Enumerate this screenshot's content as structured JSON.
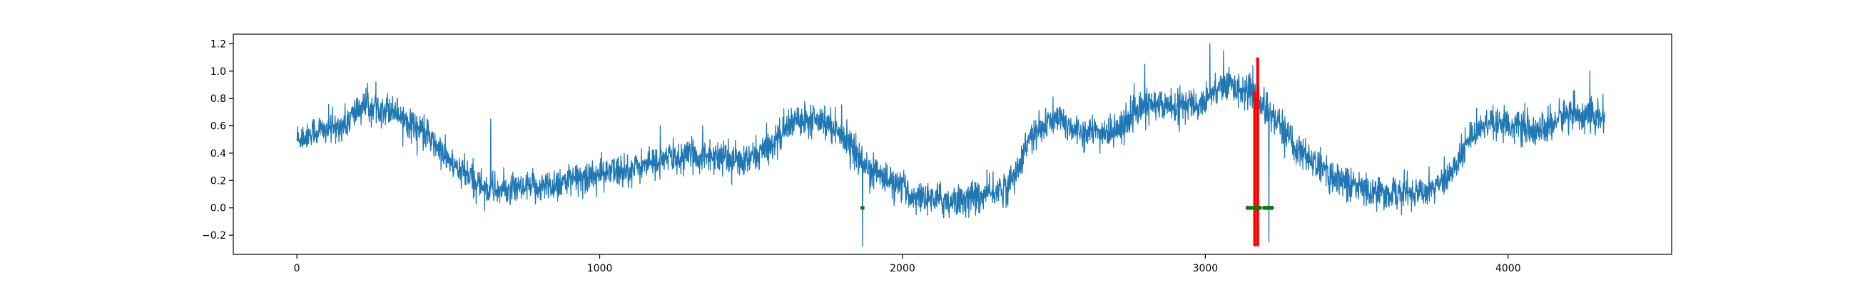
{
  "chart_data": {
    "type": "line",
    "title": "",
    "xlabel": "",
    "ylabel": "",
    "xlim": [
      -210,
      4540
    ],
    "ylim": [
      -0.34,
      1.27
    ],
    "xticks": [
      0,
      1000,
      2000,
      3000,
      4000
    ],
    "xtick_labels": [
      "0",
      "1000",
      "2000",
      "3000",
      "4000"
    ],
    "yticks": [
      -0.2,
      0.0,
      0.2,
      0.4,
      0.6,
      0.8,
      1.0,
      1.2
    ],
    "ytick_labels": [
      "−0.2",
      "0.0",
      "0.2",
      "0.4",
      "0.6",
      "0.8",
      "1.0",
      "1.2"
    ],
    "grid": false,
    "legend": "none",
    "colors": {
      "signal": "#1f77b4",
      "anomaly": "#ff0000",
      "marker": "#008000"
    },
    "series": [
      {
        "style": "line",
        "color": "#1f77b4",
        "n_points": 4320,
        "noise": 0.07,
        "baseline": [
          [
            0,
            0.5
          ],
          [
            60,
            0.55
          ],
          [
            150,
            0.6
          ],
          [
            220,
            0.75
          ],
          [
            320,
            0.72
          ],
          [
            420,
            0.55
          ],
          [
            520,
            0.3
          ],
          [
            620,
            0.15
          ],
          [
            700,
            0.12
          ],
          [
            800,
            0.15
          ],
          [
            900,
            0.2
          ],
          [
            1000,
            0.25
          ],
          [
            1100,
            0.28
          ],
          [
            1200,
            0.35
          ],
          [
            1300,
            0.38
          ],
          [
            1400,
            0.38
          ],
          [
            1480,
            0.33
          ],
          [
            1560,
            0.45
          ],
          [
            1650,
            0.65
          ],
          [
            1720,
            0.67
          ],
          [
            1800,
            0.55
          ],
          [
            1870,
            0.32
          ],
          [
            1950,
            0.2
          ],
          [
            2050,
            0.08
          ],
          [
            2150,
            0.05
          ],
          [
            2250,
            0.08
          ],
          [
            2350,
            0.15
          ],
          [
            2420,
            0.5
          ],
          [
            2500,
            0.65
          ],
          [
            2600,
            0.55
          ],
          [
            2700,
            0.55
          ],
          [
            2800,
            0.75
          ],
          [
            2900,
            0.75
          ],
          [
            2980,
            0.75
          ],
          [
            3050,
            0.9
          ],
          [
            3150,
            0.85
          ],
          [
            3230,
            0.65
          ],
          [
            3300,
            0.45
          ],
          [
            3400,
            0.25
          ],
          [
            3500,
            0.15
          ],
          [
            3600,
            0.1
          ],
          [
            3700,
            0.12
          ],
          [
            3800,
            0.2
          ],
          [
            3880,
            0.55
          ],
          [
            3950,
            0.65
          ],
          [
            4100,
            0.55
          ],
          [
            4200,
            0.7
          ],
          [
            4320,
            0.65
          ]
        ],
        "spikes": [
          [
            400,
            0.6
          ],
          [
            640,
            0.65
          ],
          [
            1200,
            0.6
          ],
          [
            1340,
            0.6
          ],
          [
            1868,
            -0.28
          ],
          [
            2800,
            1.05
          ],
          [
            3015,
            1.2
          ],
          [
            3060,
            1.15
          ],
          [
            3165,
            0.9
          ],
          [
            3210,
            -0.25
          ],
          [
            4270,
            1.0
          ]
        ]
      },
      {
        "style": "vline",
        "color": "#ff0000",
        "x": 3163,
        "y_range": [
          -0.28,
          0.85
        ]
      },
      {
        "style": "vline",
        "color": "#ff0000",
        "x": 3173,
        "y_range": [
          -0.28,
          1.1
        ]
      },
      {
        "style": "markers",
        "color": "#008000",
        "x": [
          1868,
          3140,
          3150,
          3160,
          3170,
          3180,
          3195,
          3205,
          3212,
          3220
        ],
        "y": [
          0,
          0,
          0,
          0,
          0,
          0,
          0,
          0,
          0,
          0
        ]
      }
    ]
  }
}
